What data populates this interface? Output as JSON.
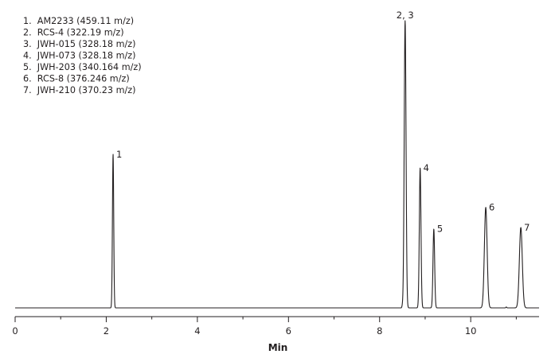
{
  "chart_data": {
    "type": "line",
    "xlabel": "Min",
    "xlim": [
      0,
      11.5
    ],
    "x_ticks": [
      "0",
      "2",
      "4",
      "6",
      "8",
      "10"
    ],
    "x_tick_values": [
      0,
      2,
      4,
      6,
      8,
      10
    ],
    "ylabel": "",
    "legend": [
      "1.  AM2233 (459.11 m/z)",
      "2.  RCS-4 (322.19 m/z)",
      "3.  JWH-015 (328.18 m/z)",
      "4.  JWH-073 (328.18 m/z)",
      "5.  JWH-203 (340.164 m/z)",
      "6.  RCS-8 (376.246 m/z)",
      "7.  JWH-210 (370.23 m/z)"
    ],
    "legend_position": "top-left",
    "grid": false,
    "peaks": [
      {
        "label": "1",
        "x": 2.15,
        "height": 0.535,
        "width": 0.014
      },
      {
        "label": "2, 3",
        "x": 8.56,
        "height": 1.0,
        "width": 0.02
      },
      {
        "label": "4",
        "x": 8.89,
        "height": 0.487,
        "width": 0.018
      },
      {
        "label": "5",
        "x": 9.19,
        "height": 0.275,
        "width": 0.018
      },
      {
        "label": "6",
        "x": 10.33,
        "height": 0.35,
        "width": 0.03
      },
      {
        "label": "7",
        "x": 11.1,
        "height": 0.28,
        "width": 0.032
      }
    ]
  },
  "colors": {
    "line": "#231f20",
    "axis": "#231f20"
  }
}
